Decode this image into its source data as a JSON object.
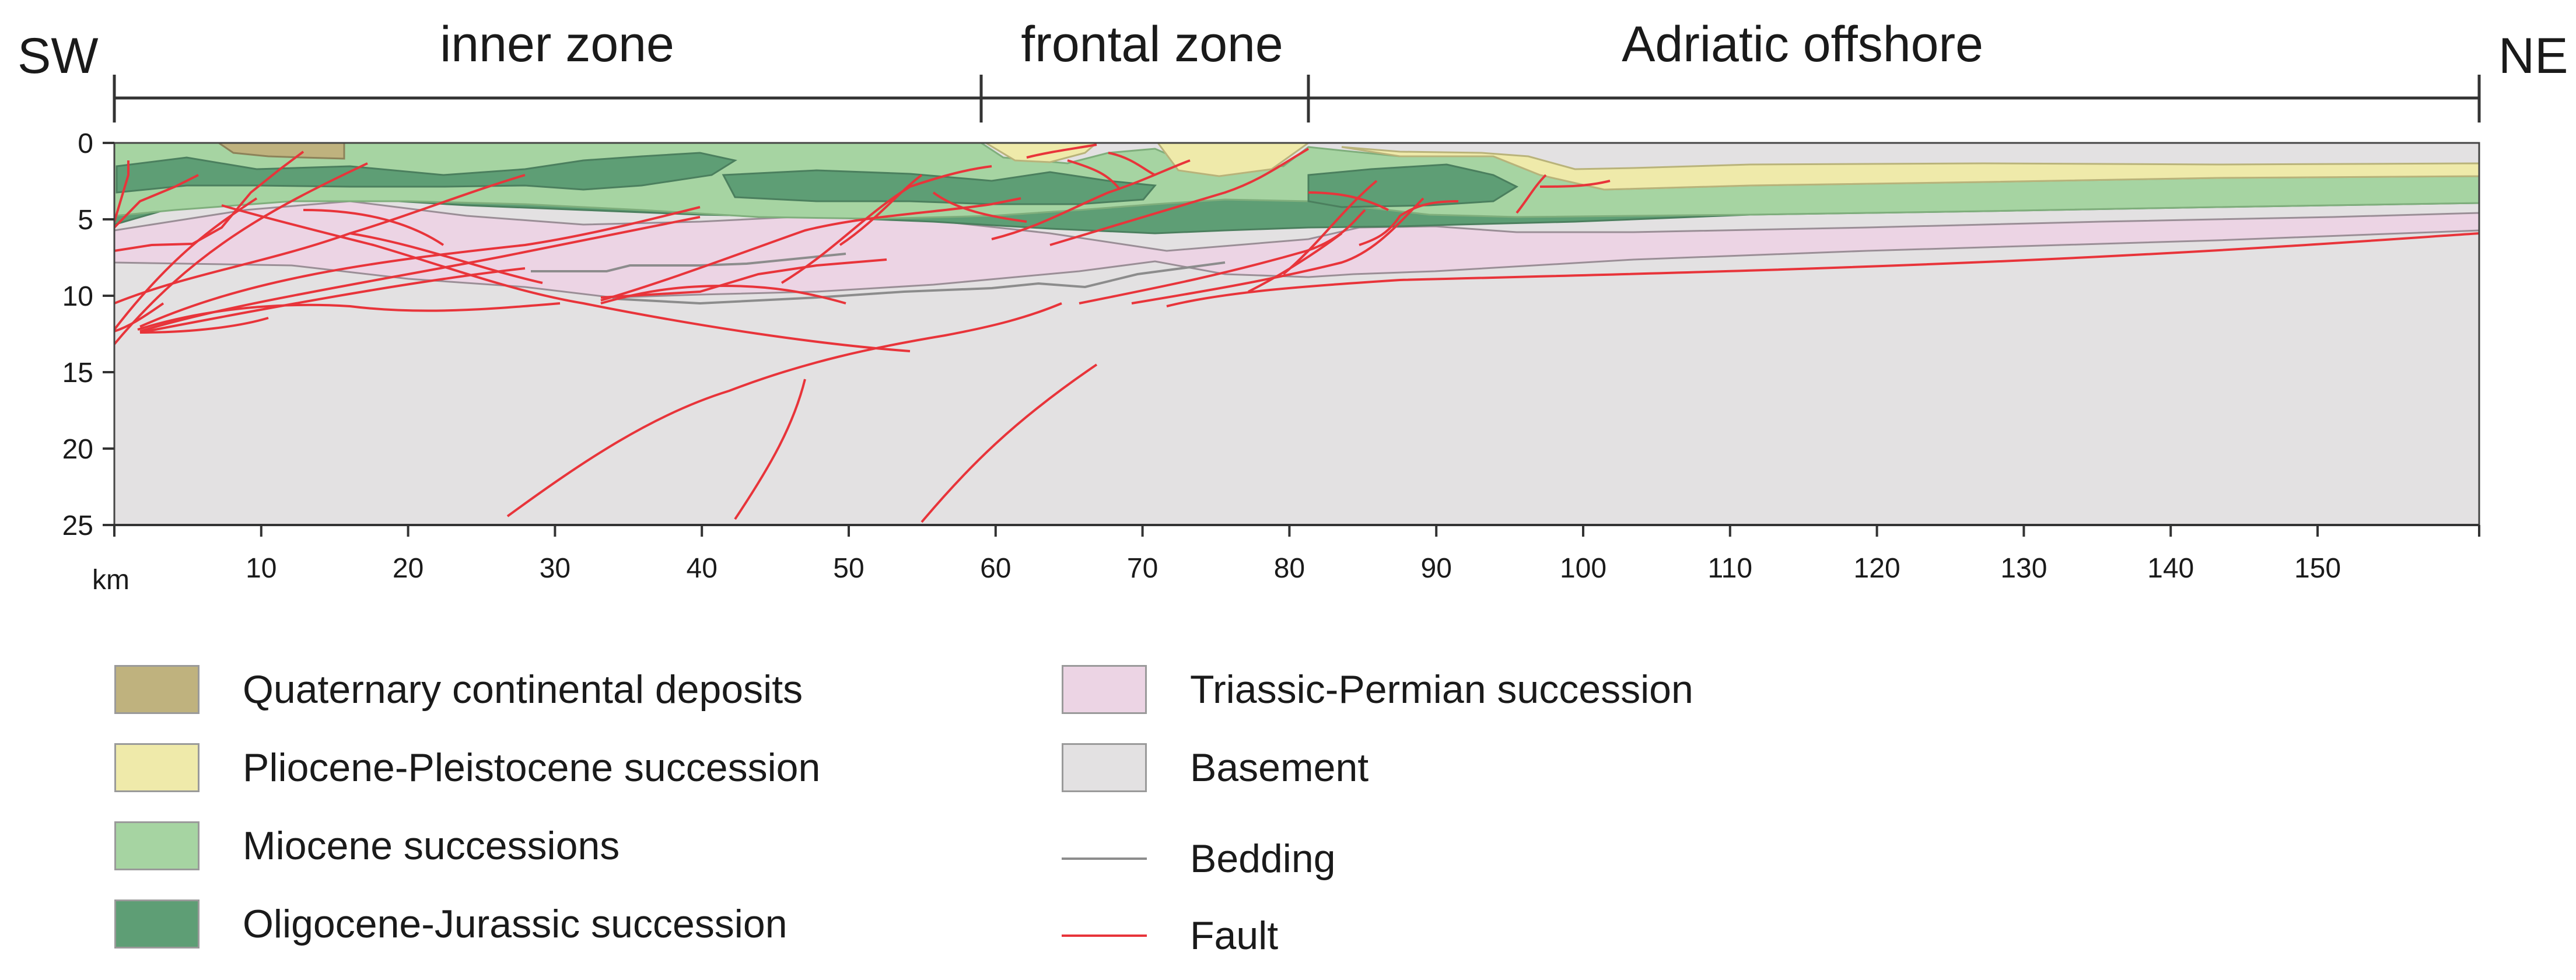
{
  "title": {
    "sw": "SW",
    "ne": "NE",
    "zones": [
      {
        "id": "inner",
        "label": "inner zone"
      },
      {
        "id": "frontal",
        "label": "frontal zone"
      },
      {
        "id": "offshore",
        "label": "Adriatic offshore"
      }
    ]
  },
  "axes": {
    "depth_unit": "km",
    "depth_ticks": [
      "0",
      "5",
      "10",
      "15",
      "20",
      "25"
    ],
    "distance_ticks": [
      "10",
      "20",
      "30",
      "40",
      "50",
      "60",
      "70",
      "80",
      "90",
      "100",
      "110",
      "120",
      "130",
      "140",
      "150"
    ]
  },
  "legend": {
    "units": [
      {
        "id": "quaternary",
        "label": "Quaternary continental deposits",
        "color": "#bfb27e"
      },
      {
        "id": "plio",
        "label": "Pliocene-Pleistocene succession",
        "color": "#efeaaa"
      },
      {
        "id": "miocene",
        "label": "Miocene successions",
        "color": "#a6d4a2"
      },
      {
        "id": "oligo",
        "label": "Oligocene-Jurassic succession",
        "color": "#5e9e75"
      },
      {
        "id": "triassic",
        "label": "Triassic-Permian succession",
        "color": "#ecd4e4"
      },
      {
        "id": "basement",
        "label": "Basement",
        "color": "#e3e1e2"
      }
    ],
    "lines": [
      {
        "id": "bedding",
        "label": "Bedding",
        "color": "#8c8c8c"
      },
      {
        "id": "fault",
        "label": "Fault",
        "color": "#e8343a"
      }
    ]
  }
}
